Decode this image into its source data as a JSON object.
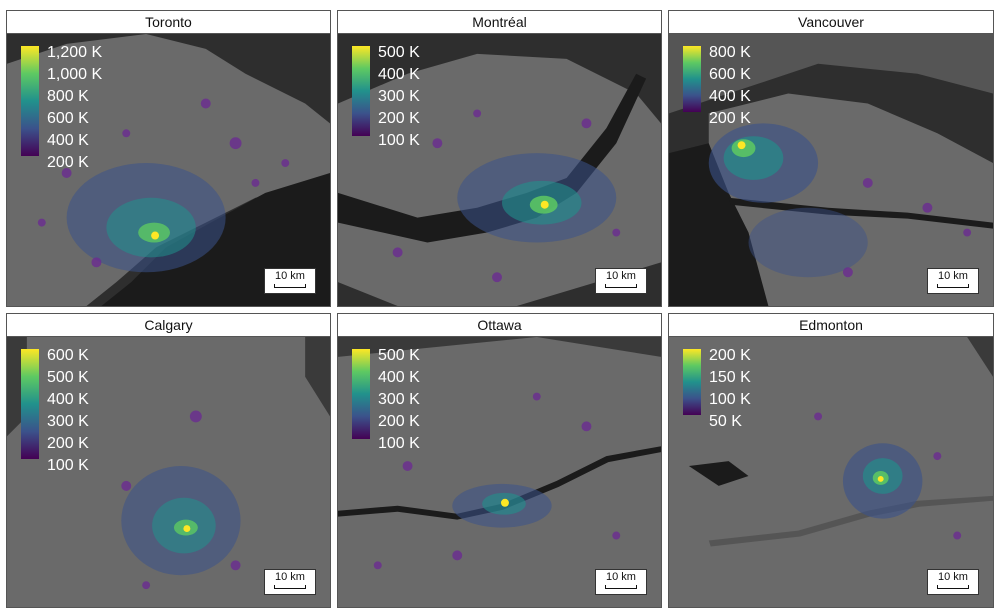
{
  "panels": [
    {
      "title": "Toronto",
      "legend": [
        "1,200 K",
        "1,000 K",
        "800 K",
        "600 K",
        "400 K",
        "200 K"
      ],
      "scale": "10 km"
    },
    {
      "title": "Montréal",
      "legend": [
        "500 K",
        "400 K",
        "300 K",
        "200 K",
        "100 K"
      ],
      "scale": "10 km"
    },
    {
      "title": "Vancouver",
      "legend": [
        "800 K",
        "600 K",
        "400 K",
        "200 K"
      ],
      "scale": "10 km"
    },
    {
      "title": "Calgary",
      "legend": [
        "600 K",
        "500 K",
        "400 K",
        "300 K",
        "200 K",
        "100 K"
      ],
      "scale": "10 km"
    },
    {
      "title": "Ottawa",
      "legend": [
        "500 K",
        "400 K",
        "300 K",
        "200 K",
        "100 K"
      ],
      "scale": "10 km"
    },
    {
      "title": "Edmonton",
      "legend": [
        "200 K",
        "150 K",
        "100 K",
        "50 K"
      ],
      "scale": "10 km"
    }
  ],
  "colors": {
    "background_dark": "#2b2b2b",
    "land": "#6f6f6f",
    "water": "#1e1e1e",
    "colormap": [
      "#440154",
      "#3b528b",
      "#21918c",
      "#5ec962",
      "#fde725"
    ]
  }
}
